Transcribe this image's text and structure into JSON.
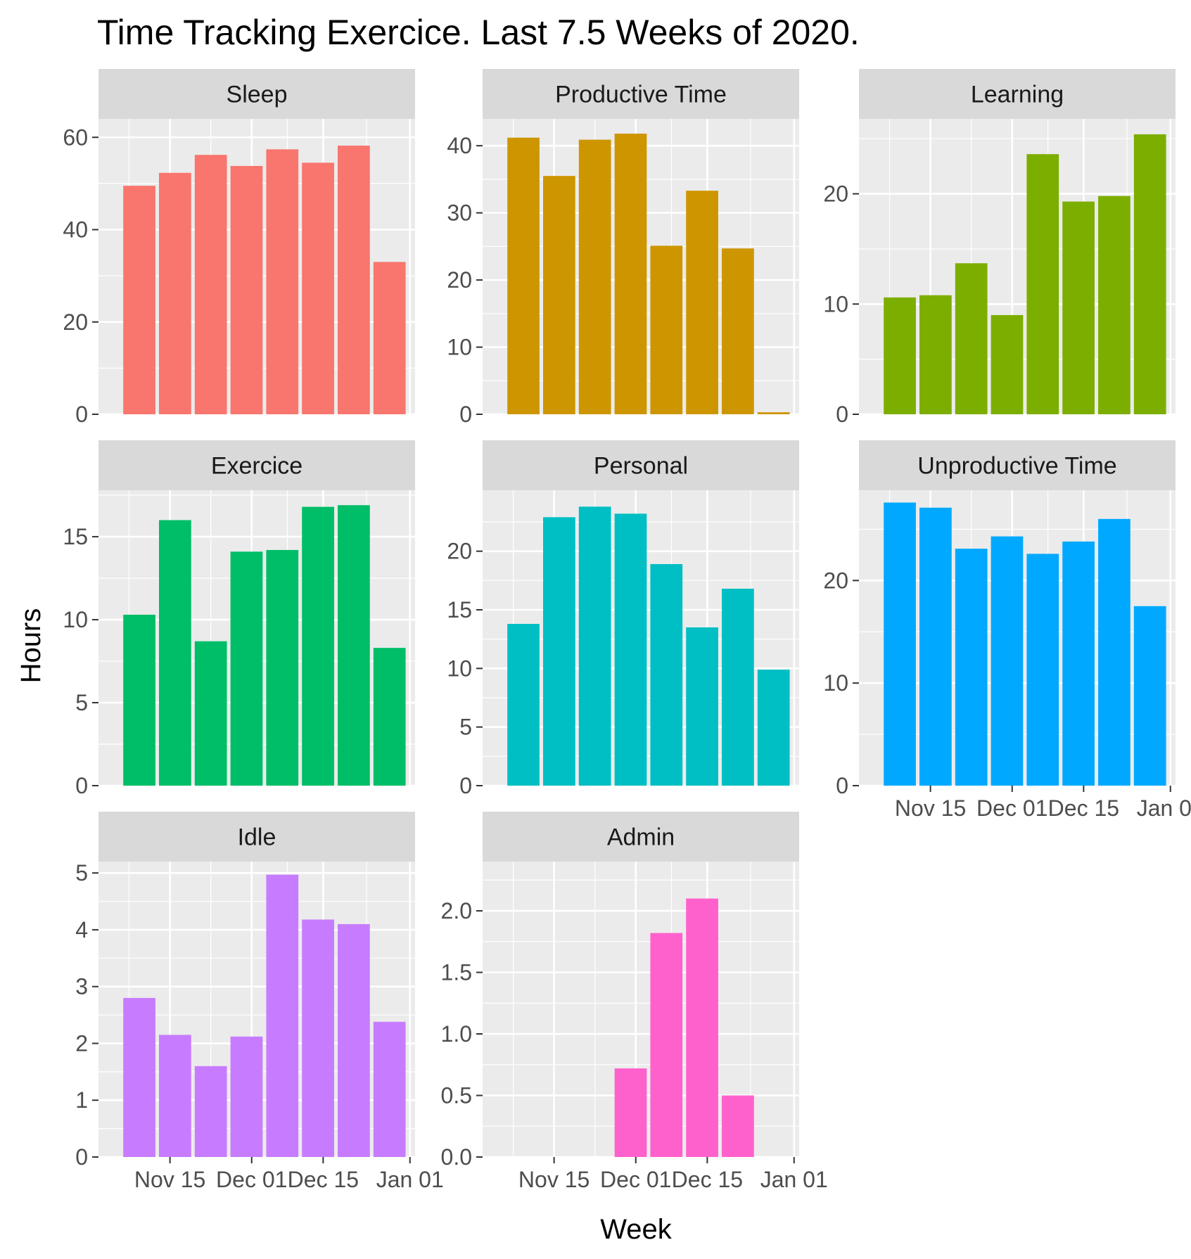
{
  "chart_data": {
    "type": "bar",
    "title": "Time Tracking Exercice. Last 7.5 Weeks of 2020.",
    "xlabel": "Week",
    "ylabel": "Hours",
    "x_axis": {
      "type": "date",
      "range": [
        "2020-11-01",
        "2021-01-02"
      ],
      "ticks": [
        {
          "date": "2020-11-15",
          "label": "Nov 15"
        },
        {
          "date": "2020-12-01",
          "label": "Dec 01"
        },
        {
          "date": "2020-12-15",
          "label": "Dec 15"
        },
        {
          "date": "2021-01-01",
          "label": "Jan 01"
        }
      ]
    },
    "weeks": [
      "2020-11-09",
      "2020-11-16",
      "2020-11-23",
      "2020-11-30",
      "2020-12-07",
      "2020-12-14",
      "2020-12-21",
      "2020-12-28"
    ],
    "grid": true,
    "panels": [
      {
        "name": "Sleep",
        "color": "#F8766D",
        "ylim": [
          0,
          64
        ],
        "yticks": [
          0,
          20,
          40,
          60
        ],
        "values": [
          49.5,
          52.3,
          56.2,
          53.8,
          57.4,
          54.5,
          58.2,
          33
        ]
      },
      {
        "name": "Productive Time",
        "color": "#CD9600",
        "ylim": [
          0,
          44
        ],
        "yticks": [
          0,
          10,
          20,
          30,
          40
        ],
        "values": [
          41.2,
          35.5,
          40.9,
          41.8,
          25.1,
          33.3,
          24.7,
          0.3
        ]
      },
      {
        "name": "Learning",
        "color": "#7CAE00",
        "ylim": [
          0,
          26.8
        ],
        "yticks": [
          0,
          10,
          20
        ],
        "values": [
          10.6,
          10.8,
          13.7,
          9,
          23.6,
          19.3,
          19.8,
          25.4
        ]
      },
      {
        "name": "Exercice",
        "color": "#00BE67",
        "ylim": [
          0,
          17.8
        ],
        "yticks": [
          0,
          5,
          10,
          15
        ],
        "values": [
          10.3,
          16,
          8.7,
          14.1,
          14.2,
          16.8,
          16.9,
          8.3
        ]
      },
      {
        "name": "Personal",
        "color": "#00BFC4",
        "ylim": [
          0,
          25.2
        ],
        "yticks": [
          0,
          5,
          10,
          15,
          20
        ],
        "values": [
          13.8,
          22.9,
          23.8,
          23.2,
          18.9,
          13.5,
          16.8,
          9.9
        ]
      },
      {
        "name": "Unproductive Time",
        "color": "#00A9FF",
        "ylim": [
          0,
          28.8
        ],
        "yticks": [
          0,
          10,
          20
        ],
        "values": [
          27.6,
          27.1,
          23.1,
          24.3,
          22.6,
          23.8,
          26,
          17.5
        ]
      },
      {
        "name": "Idle",
        "color": "#C77CFF",
        "ylim": [
          0,
          5.2
        ],
        "yticks": [
          0,
          1,
          2,
          3,
          4,
          5
        ],
        "values": [
          2.8,
          2.15,
          1.6,
          2.12,
          4.97,
          4.18,
          4.1,
          2.38
        ]
      },
      {
        "name": "Admin",
        "color": "#FF61CC",
        "ylim": [
          0,
          2.4
        ],
        "yticks": [
          0,
          0.5,
          1,
          1.5,
          2
        ],
        "yticklabels": [
          "0.0",
          "0.5",
          "1.0",
          "1.5",
          "2.0"
        ],
        "values": [
          0,
          0,
          0,
          0.72,
          1.82,
          2.1,
          0.5,
          0
        ]
      }
    ]
  }
}
